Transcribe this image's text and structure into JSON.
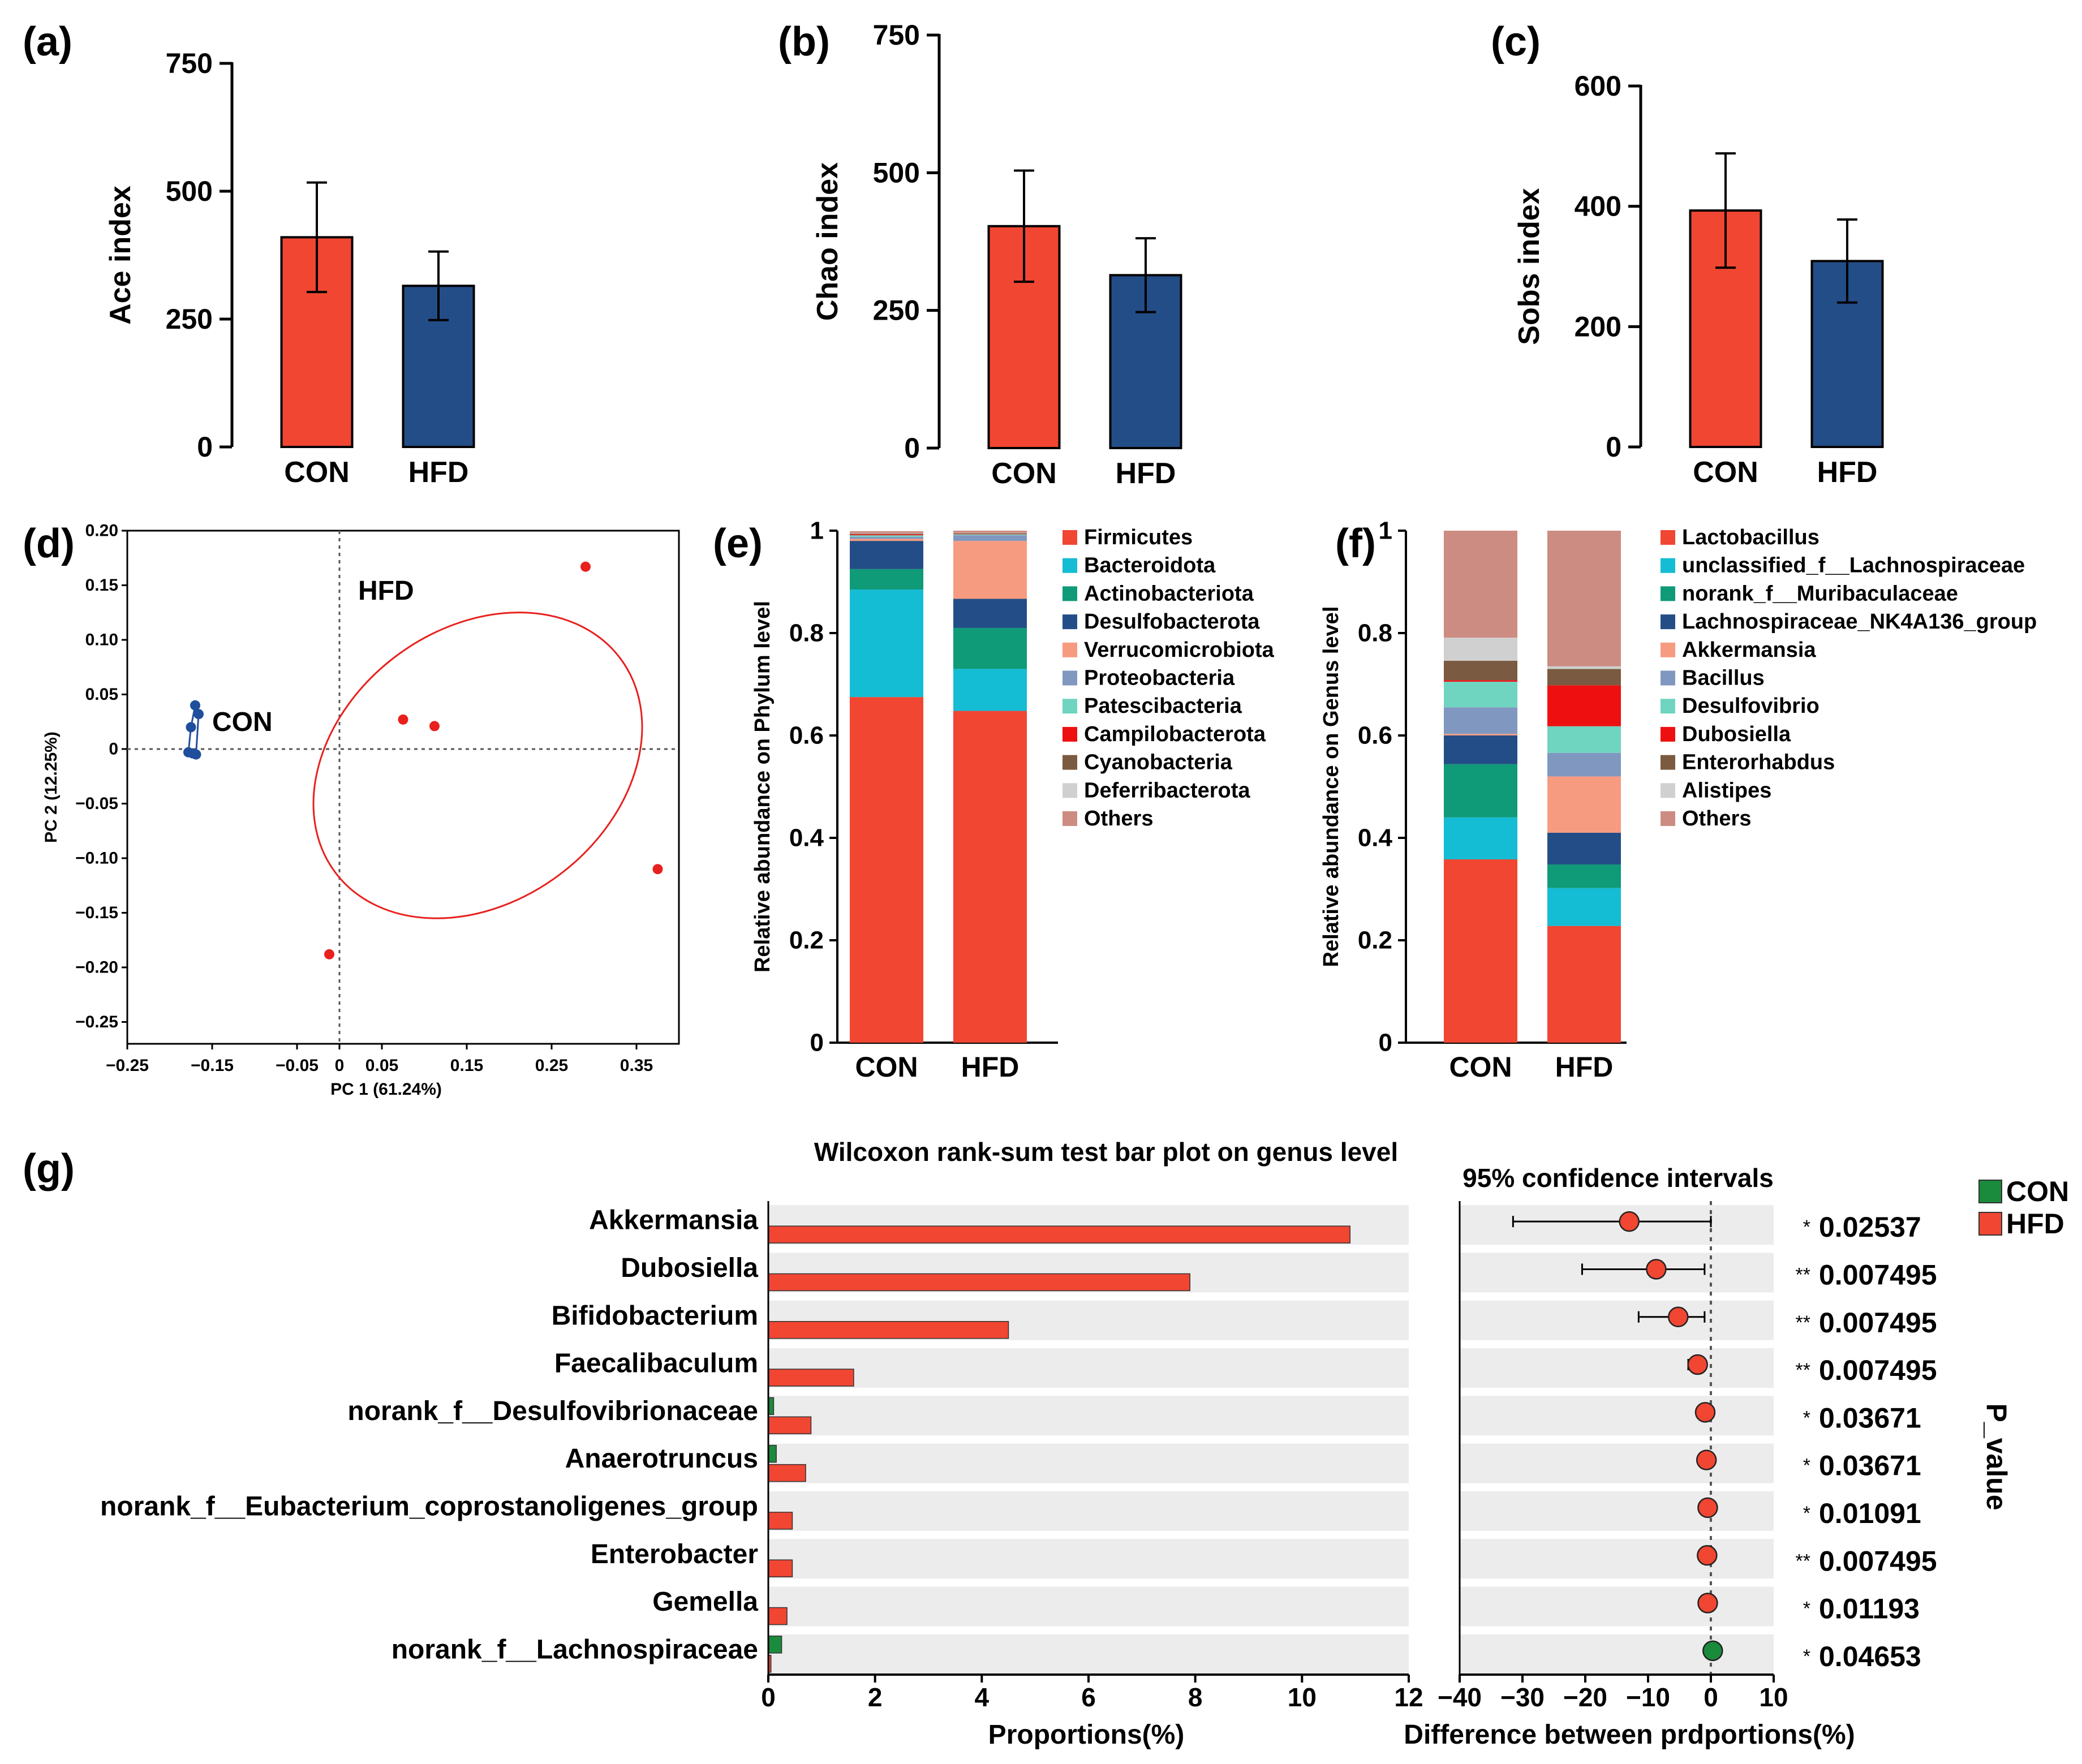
{
  "colors": {
    "con": "#f04632",
    "hfd": "#234d86",
    "wil_con": "#1a8a3c",
    "wil_hfd": "#f04632",
    "panel_bg": "#ececec",
    "pcoa_con": "#1f4e9c",
    "pcoa_hfd": "#e8201e",
    "star": "#e8201e"
  },
  "panel_labels": [
    "(a)",
    "(b)",
    "(c)",
    "(d)",
    "(e)",
    "(f)",
    "(g)"
  ],
  "chart_data": [
    {
      "id": "a",
      "type": "bar",
      "panel": "(a)",
      "categories": [
        "CON",
        "HFD"
      ],
      "values": [
        410,
        315
      ],
      "errors": [
        107,
        67
      ],
      "ylabel": "Ace index",
      "ylim": [
        0,
        750
      ],
      "yticks": [
        0,
        250,
        500,
        750
      ]
    },
    {
      "id": "b",
      "type": "bar",
      "panel": "(b)",
      "categories": [
        "CON",
        "HFD"
      ],
      "values": [
        403,
        314
      ],
      "errors": [
        101,
        67
      ],
      "ylabel": "Chao index",
      "ylim": [
        0,
        750
      ],
      "yticks": [
        0,
        250,
        500,
        750
      ]
    },
    {
      "id": "c",
      "type": "bar",
      "panel": "(c)",
      "categories": [
        "CON",
        "HFD"
      ],
      "values": [
        393,
        309
      ],
      "errors": [
        95,
        69
      ],
      "ylabel": "Sobs index",
      "ylim": [
        0,
        600
      ],
      "yticks": [
        0,
        200,
        400,
        600
      ]
    },
    {
      "id": "d",
      "type": "scatter",
      "panel": "(d)",
      "xlabel": "PC 1 (61.24%)",
      "ylabel": "PC 2 (12.25%)",
      "xlim": [
        -0.25,
        0.4
      ],
      "ylim": [
        -0.27,
        0.2
      ],
      "xticks": [
        -0.25,
        -0.15,
        -0.05,
        0,
        0.05,
        0.15,
        0.25,
        0.35
      ],
      "xtick_labels": [
        "−0.25",
        "−0.15",
        "−0.05",
        "0",
        "0.05",
        "0.15",
        "0.25",
        "0.35"
      ],
      "yticks": [
        0.2,
        0.15,
        0.1,
        0.05,
        0,
        -0.05,
        -0.1,
        -0.15,
        -0.2,
        -0.25
      ],
      "ytick_labels": [
        "0.20",
        "0.15",
        "0.10",
        "0.05",
        "0",
        "−0.05",
        "−0.10",
        "−0.15",
        "−0.20",
        "−0.25"
      ],
      "series": [
        {
          "name": "CON",
          "points": [
            [
              -0.175,
              0.02
            ],
            [
              -0.17,
              0.04
            ],
            [
              -0.166,
              0.032
            ],
            [
              -0.178,
              -0.003
            ],
            [
              -0.173,
              -0.004
            ],
            [
              -0.169,
              -0.005
            ]
          ]
        },
        {
          "name": "HFD",
          "points": [
            [
              0.29,
              0.167
            ],
            [
              0.075,
              0.027
            ],
            [
              0.112,
              0.021
            ],
            [
              0.375,
              -0.11
            ],
            [
              -0.012,
              -0.188
            ]
          ]
        }
      ],
      "ellipse": {
        "name": "HFD",
        "cx": 0.163,
        "cy": -0.015,
        "rx": 0.21,
        "ry": 0.125,
        "angle_deg": 37
      }
    },
    {
      "id": "e",
      "type": "bar",
      "panel": "(e)",
      "stacked": true,
      "categories": [
        "CON",
        "HFD"
      ],
      "ylabel": "Relative abundance on Phylum level",
      "ylim": [
        0,
        1
      ],
      "yticks": [
        0,
        0.2,
        0.4,
        0.6,
        0.8,
        1
      ],
      "ytick_labels": [
        "0",
        "0.2",
        "0.4",
        "0.6",
        "0.8",
        "1"
      ],
      "series": [
        {
          "name": "Firmicutes",
          "color": "#f04632",
          "values": [
            0.675,
            0.648
          ]
        },
        {
          "name": "Bacteroidota",
          "color": "#14bcd4",
          "values": [
            0.21,
            0.082
          ]
        },
        {
          "name": "Actinobacteriota",
          "color": "#0f9a78",
          "values": [
            0.04,
            0.08
          ]
        },
        {
          "name": "Desulfobacterota",
          "color": "#234d86",
          "values": [
            0.055,
            0.057
          ]
        },
        {
          "name": "Verrucomicrobiota",
          "color": "#f79b80",
          "values": [
            0.004,
            0.113
          ]
        },
        {
          "name": "Proteobacteria",
          "color": "#8098c0",
          "values": [
            0.004,
            0.011
          ]
        },
        {
          "name": "Patescibacteria",
          "color": "#6fd4c0",
          "values": [
            0.003,
            0.002
          ]
        },
        {
          "name": "Campilobacterota",
          "color": "#ee1010",
          "values": [
            0.002,
            0.001
          ]
        },
        {
          "name": "Cyanobacteria",
          "color": "#7a5a40",
          "values": [
            0.001,
            0.001
          ]
        },
        {
          "name": "Deferribacterota",
          "color": "#d0d0d0",
          "values": [
            0.001,
            0.001
          ]
        },
        {
          "name": "Others",
          "color": "#cc8c82",
          "values": [
            0.004,
            0.004
          ]
        }
      ]
    },
    {
      "id": "f",
      "type": "bar",
      "panel": "(f)",
      "stacked": true,
      "categories": [
        "CON",
        "HFD"
      ],
      "ylabel": "Relative abundance on Genus level",
      "ylim": [
        0,
        1
      ],
      "yticks": [
        0,
        0.2,
        0.4,
        0.6,
        0.8,
        1
      ],
      "ytick_labels": [
        "0",
        "0.2",
        "0.4",
        "0.6",
        "0.8",
        "1"
      ],
      "series": [
        {
          "name": "Lactobacillus",
          "color": "#f04632",
          "values": [
            0.358,
            0.228
          ]
        },
        {
          "name": "unclassified_f__Lachnospiraceae",
          "color": "#14bcd4",
          "values": [
            0.082,
            0.074
          ]
        },
        {
          "name": "norank_f__Muribaculaceae",
          "color": "#0f9a78",
          "values": [
            0.104,
            0.046
          ]
        },
        {
          "name": "Lachnospiraceae_NK4A136_group",
          "color": "#234d86",
          "values": [
            0.056,
            0.062
          ]
        },
        {
          "name": "Akkermansia",
          "color": "#f79b80",
          "values": [
            0.003,
            0.11
          ]
        },
        {
          "name": "Bacillus",
          "color": "#8098c0",
          "values": [
            0.052,
            0.046
          ]
        },
        {
          "name": "Desulfovibrio",
          "color": "#6fd4c0",
          "values": [
            0.05,
            0.052
          ]
        },
        {
          "name": "Dubosiella",
          "color": "#ee1010",
          "values": [
            0.003,
            0.08
          ]
        },
        {
          "name": "Enterorhabdus",
          "color": "#7a5a40",
          "values": [
            0.038,
            0.032
          ]
        },
        {
          "name": "Alistipes",
          "color": "#d0d0d0",
          "values": [
            0.045,
            0.005
          ]
        },
        {
          "name": "Others",
          "color": "#cc8c82",
          "values": [
            0.209,
            0.265
          ]
        }
      ]
    },
    {
      "id": "g",
      "type": "bar",
      "panel": "(g)",
      "orientation": "horizontal",
      "title": "Wilcoxon rank-sum test bar plot on genus level",
      "xlabel": "Proportions(%)",
      "xlim": [
        0,
        12
      ],
      "xticks": [
        0,
        2,
        4,
        6,
        8,
        10,
        12
      ],
      "categories": [
        "Akkermansia",
        "Dubosiella",
        "Bifidobacterium",
        "Faecalibaculum",
        "norank_f__Desulfovibrionaceae",
        "Anaerotruncus",
        "norank_f__Eubacterium_coprostanoligenes_group",
        "Enterobacter",
        "Gemella",
        "norank_f__Lachnospiraceae"
      ],
      "series": [
        {
          "name": "CON",
          "values": [
            0,
            0,
            0,
            0,
            0.1,
            0.15,
            0,
            0,
            0,
            0.25
          ]
        },
        {
          "name": "HFD",
          "values": [
            10.9,
            7.9,
            4.5,
            1.6,
            0.8,
            0.7,
            0.45,
            0.45,
            0.35,
            0.05
          ]
        }
      ],
      "legend": [
        "CON",
        "HFD"
      ]
    },
    {
      "id": "g-ci",
      "type": "scatter",
      "panel": "(g)",
      "title": "95% confidence intervals",
      "xlabel": "Difference between prdportions(%)",
      "xlim": [
        -40,
        10
      ],
      "xticks": [
        -40,
        -30,
        -20,
        -10,
        0,
        10
      ],
      "xtick_labels": [
        "−40",
        "−30",
        "−20",
        "−10",
        "0",
        "10"
      ],
      "categories": [
        "Akkermansia",
        "Dubosiella",
        "Bifidobacterium",
        "Faecalibaculum",
        "norank_f__Desulfovibrionaceae",
        "Anaerotruncus",
        "norank_f__Eubacterium_coprostanoligenes_group",
        "Enterobacter",
        "Gemella",
        "norank_f__Lachnospiraceae"
      ],
      "estimate": [
        -13.0,
        -8.7,
        -5.2,
        -2.1,
        -0.9,
        -0.7,
        -0.5,
        -0.6,
        -0.5,
        0.3
      ],
      "ci_low": [
        -31.5,
        -20.5,
        -11.5,
        -3.6,
        -1.2,
        -1.0,
        -0.8,
        -0.9,
        -0.8,
        0.1
      ],
      "ci_high": [
        0.0,
        -1.0,
        -1.0,
        -1.0,
        -0.6,
        -0.4,
        -0.3,
        -0.3,
        -0.3,
        0.6
      ],
      "higher_group": [
        "HFD",
        "HFD",
        "HFD",
        "HFD",
        "HFD",
        "HFD",
        "HFD",
        "HFD",
        "HFD",
        "CON"
      ],
      "p_label": "P_value",
      "p_values": [
        "0.02537",
        "0.007495",
        "0.007495",
        "0.007495",
        "0.03671",
        "0.03671",
        "0.01091",
        "0.007495",
        "0.01193",
        "0.04653"
      ],
      "stars": [
        "*",
        "**",
        "**",
        "**",
        "*",
        "*",
        "*",
        "**",
        "*",
        "*"
      ]
    }
  ]
}
